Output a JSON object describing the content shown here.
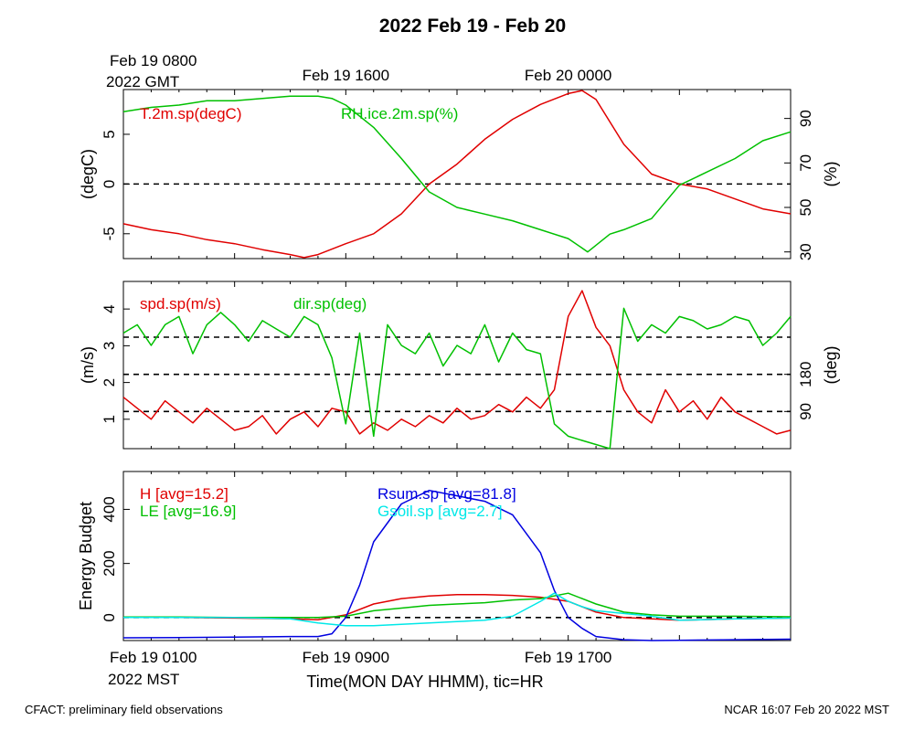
{
  "title": "2022 Feb 19 - Feb 20",
  "colors": {
    "red": "#e00000",
    "green": "#00c000",
    "blue": "#0000e0",
    "cyan": "#00e8e8",
    "black": "#000000"
  },
  "top_axis": {
    "ticks": [
      {
        "hour": 0,
        "label": "Feb 19 0800",
        "sublabel": "2022 GMT"
      },
      {
        "hour": 8,
        "label": "Feb 19 1600"
      },
      {
        "hour": 16,
        "label": "Feb 20 0000"
      }
    ]
  },
  "bottom_axis": {
    "xlabel": "Time(MON DAY HHMM), tic=HR",
    "ticks": [
      {
        "hour": 0,
        "label": "Feb 19 0100",
        "sublabel": "2022 MST"
      },
      {
        "hour": 8,
        "label": "Feb 19 0900"
      },
      {
        "hour": 16,
        "label": "Feb 19 1700"
      }
    ]
  },
  "footer": {
    "left": "CFACT: preliminary field observations",
    "right": "NCAR 16:07 Feb 20 2022 MST"
  },
  "chart_data": [
    {
      "type": "line",
      "x_unit": "hours after Feb 19 0100 MST",
      "xlim": [
        0,
        24
      ],
      "ylim": [
        -7.5,
        9.5
      ],
      "ylabel": "(degC)",
      "yticks": [
        -5,
        0,
        5
      ],
      "ylim_right": [
        27,
        103
      ],
      "ylabel_right": "(%)",
      "yticks_right": [
        30,
        50,
        70,
        90
      ],
      "ref_lines": [
        0
      ],
      "legend": [
        {
          "text": "T.2m.sp(degC)",
          "color": "#e00000"
        },
        {
          "text": "RH.ice.2m.sp(%)",
          "color": "#00c000"
        }
      ],
      "series": [
        {
          "name": "T.2m.sp(degC)",
          "axis": "left",
          "color": "#e00000",
          "x": [
            0,
            1,
            2,
            3,
            4,
            5,
            6,
            6.5,
            7,
            8,
            9,
            10,
            11,
            12,
            13,
            14,
            15,
            16,
            16.5,
            17,
            18,
            19,
            20,
            21,
            22,
            23,
            24
          ],
          "y": [
            -4,
            -4.6,
            -5,
            -5.6,
            -6,
            -6.6,
            -7.1,
            -7.4,
            -7.1,
            -6,
            -5,
            -3,
            0,
            2,
            4.5,
            6.5,
            8,
            9.1,
            9.4,
            8.5,
            4,
            1,
            0,
            -0.5,
            -1.5,
            -2.5,
            -3
          ]
        },
        {
          "name": "RH.ice.2m.sp(%)",
          "axis": "right",
          "color": "#00c000",
          "x": [
            0,
            1,
            2,
            3,
            4,
            5,
            6,
            7,
            7.5,
            8,
            9,
            10,
            11,
            12,
            13,
            14,
            15,
            16,
            16.7,
            17.5,
            18,
            19,
            20,
            21,
            22,
            23,
            24
          ],
          "y": [
            93,
            95,
            96,
            98,
            98,
            99,
            100,
            100,
            99,
            96,
            86,
            72,
            57,
            50,
            47,
            44,
            40,
            36,
            30,
            38,
            40,
            45,
            60,
            66,
            72,
            80,
            84
          ]
        }
      ]
    },
    {
      "type": "line",
      "x_unit": "hours after Feb 19 0100 MST",
      "xlim": [
        0,
        24
      ],
      "ylim": [
        0.2,
        4.75
      ],
      "ylabel": "(m/s)",
      "yticks": [
        1,
        2,
        3,
        4
      ],
      "ylim_right": [
        0,
        405
      ],
      "ylabel_right": "(deg)",
      "yticks_right": [
        90,
        180
      ],
      "ref_lines_right": [
        90,
        180,
        270
      ],
      "legend": [
        {
          "text": "spd.sp(m/s)",
          "color": "#e00000"
        },
        {
          "text": "dir.sp(deg)",
          "color": "#00c000"
        }
      ],
      "series": [
        {
          "name": "spd.sp(m/s)",
          "axis": "left",
          "color": "#e00000",
          "x": [
            0,
            0.5,
            1,
            1.5,
            2,
            2.5,
            3,
            3.5,
            4,
            4.5,
            5,
            5.5,
            6,
            6.5,
            7,
            7.5,
            8,
            8.5,
            9,
            9.5,
            10,
            10.5,
            11,
            11.5,
            12,
            12.5,
            13,
            13.5,
            14,
            14.5,
            15,
            15.5,
            16,
            16.5,
            17,
            17.5,
            18,
            18.5,
            19,
            19.5,
            20,
            20.5,
            21,
            21.5,
            22,
            22.5,
            23,
            23.5,
            24
          ],
          "y": [
            1.6,
            1.3,
            1.0,
            1.5,
            1.2,
            0.9,
            1.3,
            1.0,
            0.7,
            0.8,
            1.1,
            0.6,
            1.0,
            1.2,
            0.8,
            1.3,
            1.2,
            0.6,
            0.9,
            0.7,
            1.0,
            0.8,
            1.1,
            0.9,
            1.3,
            1.0,
            1.1,
            1.4,
            1.2,
            1.6,
            1.3,
            1.8,
            3.8,
            4.5,
            3.5,
            3.0,
            1.8,
            1.2,
            0.9,
            1.8,
            1.2,
            1.5,
            1.0,
            1.6,
            1.2,
            1.0,
            0.8,
            0.6,
            0.7
          ]
        },
        {
          "name": "dir.sp(deg)",
          "axis": "right",
          "color": "#00c000",
          "x": [
            0,
            0.5,
            1,
            1.5,
            2,
            2.5,
            3,
            3.5,
            4,
            4.5,
            5,
            5.5,
            6,
            6.5,
            7,
            7.5,
            8,
            8.5,
            9,
            9.5,
            10,
            10.5,
            11,
            11.5,
            12,
            12.5,
            13,
            13.5,
            14,
            14.5,
            15,
            15.5,
            16,
            16.5,
            17,
            17.5,
            18,
            18.5,
            19,
            19.5,
            20,
            20.5,
            21,
            21.5,
            22,
            22.5,
            23,
            23.5,
            24
          ],
          "y": [
            280,
            300,
            250,
            300,
            320,
            230,
            300,
            330,
            300,
            260,
            310,
            290,
            270,
            320,
            300,
            220,
            60,
            280,
            30,
            300,
            250,
            230,
            280,
            200,
            250,
            230,
            300,
            210,
            280,
            240,
            230,
            60,
            30,
            20,
            10,
            0,
            340,
            260,
            300,
            280,
            320,
            310,
            290,
            300,
            320,
            310,
            250,
            280,
            320
          ]
        }
      ]
    },
    {
      "type": "line",
      "x_unit": "hours after Feb 19 0100 MST",
      "xlim": [
        0,
        24
      ],
      "ylim": [
        -85,
        540
      ],
      "ylabel": "Energy Budget",
      "yticks": [
        0,
        200,
        400
      ],
      "ref_lines": [
        0
      ],
      "legend": [
        {
          "text": "H [avg=15.2]",
          "color": "#e00000"
        },
        {
          "text": "LE [avg=16.9]",
          "color": "#00c000"
        },
        {
          "text": "Rsum.sp [avg=81.8]",
          "color": "#0000e0"
        },
        {
          "text": "Gsoil.sp [avg=2.7]",
          "color": "#00e8e8"
        }
      ],
      "series": [
        {
          "name": "H [avg=15.2]",
          "color": "#e00000",
          "x": [
            0,
            2,
            4,
            6,
            7,
            8,
            9,
            10,
            11,
            12,
            13,
            14,
            15,
            16,
            16.5,
            17,
            18,
            19,
            20,
            22,
            24
          ],
          "y": [
            0,
            0,
            -2,
            -5,
            -8,
            10,
            50,
            70,
            80,
            85,
            85,
            82,
            75,
            60,
            40,
            20,
            0,
            -5,
            -10,
            -5,
            -2
          ]
        },
        {
          "name": "LE [avg=16.9]",
          "color": "#00c000",
          "x": [
            0,
            2,
            4,
            6,
            7,
            8,
            9,
            10,
            11,
            12,
            13,
            14,
            15,
            16,
            16.5,
            17,
            18,
            19,
            20,
            22,
            24
          ],
          "y": [
            2,
            2,
            0,
            0,
            0,
            5,
            25,
            35,
            45,
            50,
            55,
            65,
            70,
            90,
            70,
            50,
            20,
            10,
            5,
            5,
            3
          ]
        },
        {
          "name": "Rsum.sp [avg=81.8]",
          "color": "#0000e0",
          "x": [
            0,
            2,
            4,
            6,
            7,
            7.5,
            8,
            8.5,
            9,
            10,
            11,
            12,
            13,
            14,
            15,
            15.5,
            16,
            16.5,
            17,
            18,
            19,
            20,
            22,
            24
          ],
          "y": [
            -75,
            -74,
            -72,
            -70,
            -70,
            -60,
            0,
            120,
            280,
            420,
            470,
            450,
            430,
            380,
            240,
            100,
            0,
            -40,
            -70,
            -82,
            -85,
            -84,
            -82,
            -80
          ]
        },
        {
          "name": "Gsoil.sp [avg=2.7]",
          "color": "#00e8e8",
          "x": [
            0,
            2,
            4,
            6,
            7,
            8,
            9,
            10,
            11,
            12,
            13,
            14,
            15,
            15.5,
            16,
            16.5,
            17,
            18,
            19,
            20,
            22,
            24
          ],
          "y": [
            0,
            0,
            0,
            -5,
            -20,
            -30,
            -30,
            -25,
            -20,
            -15,
            -10,
            5,
            60,
            90,
            60,
            40,
            25,
            15,
            5,
            -10,
            -5,
            -2
          ]
        }
      ]
    }
  ]
}
